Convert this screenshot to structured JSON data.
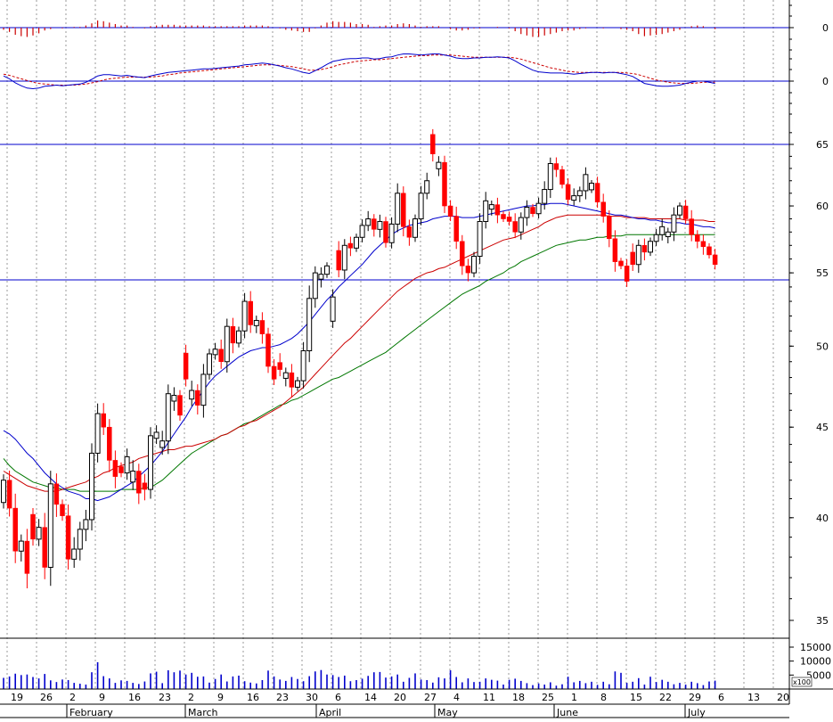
{
  "chart_data": {
    "type": "candlestick",
    "title": "",
    "price_axis": {
      "ticks": [
        "35",
        "40",
        "45",
        "50",
        "55",
        "60",
        "65"
      ],
      "ylim": [
        33.5,
        66.5
      ]
    },
    "macd_axis": {
      "ticks": [
        "0"
      ]
    },
    "histogram_axis": {
      "ticks": [
        "0"
      ]
    },
    "volume_axis": {
      "ticks": [
        "15000",
        "10000",
        "5000"
      ],
      "unit_label": "x100",
      "ylim": [
        0,
        16000
      ]
    },
    "date_axis": {
      "day_labels": [
        "19",
        "26",
        "2",
        "9",
        "16",
        "23",
        "2",
        "9",
        "16",
        "23",
        "30",
        "6",
        "14",
        "20",
        "27",
        "4",
        "11",
        "18",
        "25",
        "1",
        "8",
        "15",
        "22",
        "29",
        "6",
        "13",
        "20"
      ],
      "month_labels": [
        "February",
        "March",
        "April",
        "May",
        "June",
        "July"
      ]
    },
    "horizontal_lines": [
      65,
      54.5
    ],
    "colors": {
      "up": "#000000",
      "down": "#ff0000",
      "ma_fast": "#0000cc",
      "ma_mid": "#cc0000",
      "ma_slow": "#007700",
      "volume": "#0000cc",
      "histogram": "#cc0000"
    },
    "closes": [
      42.0,
      40.5,
      38.3,
      38.8,
      37.2,
      38.9,
      39.5,
      37.5,
      41.8,
      40.7,
      40.1,
      37.9,
      38.4,
      39.4,
      39.9,
      43.5,
      45.8,
      45.0,
      43.1,
      42.2,
      42.4,
      43.3,
      42.5,
      41.3,
      41.5,
      44.5,
      44.7,
      44.2,
      47.0,
      46.9,
      45.7,
      47.9,
      47.2,
      46.3,
      48.2,
      49.5,
      49.8,
      49.0,
      51.3,
      50.2,
      51.0,
      53.0,
      51.4,
      51.7,
      50.8,
      48.7,
      47.9,
      48.5,
      48.3,
      47.4,
      47.8,
      49.7,
      53.2,
      55.0,
      54.9,
      55.5,
      53.3,
      55.2,
      57.0,
      56.8,
      57.6,
      58.5,
      59.0,
      58.2,
      58.8,
      57.2,
      58.6,
      61.0,
      58.4,
      57.6,
      59.0,
      61.0,
      62.0,
      64.2,
      63.5,
      60.0,
      59.2,
      57.3,
      55.5,
      55.0,
      56.2,
      58.8,
      60.4,
      60.1,
      59.3,
      59.0,
      58.8,
      58.0,
      59.1,
      59.9,
      59.4,
      60.2,
      61.3,
      63.4,
      62.9,
      61.7,
      60.5,
      60.8,
      61.2,
      62.5,
      61.8,
      60.3,
      59.2,
      57.5,
      55.8,
      55.5,
      54.4,
      55.6,
      57.0,
      56.5,
      57.3,
      57.8,
      58.4,
      58.0,
      59.3,
      60.0,
      59.0,
      57.8,
      57.3,
      56.9,
      56.3,
      55.6
    ],
    "ma_fast": [
      44.8,
      44.6,
      44.3,
      43.9,
      43.5,
      43.2,
      42.8,
      42.4,
      42.1,
      41.8,
      41.6,
      41.4,
      41.3,
      41.2,
      41.0,
      41.0,
      40.9,
      41.0,
      41.1,
      41.3,
      41.5,
      41.7,
      41.9,
      42.2,
      42.5,
      42.8,
      43.2,
      43.6,
      44.1,
      44.6,
      45.1,
      45.6,
      46.2,
      46.7,
      47.2,
      47.7,
      48.1,
      48.4,
      48.7,
      49.0,
      49.3,
      49.5,
      49.7,
      49.8,
      49.9,
      49.9,
      50.0,
      50.1,
      50.3,
      50.5,
      50.8,
      51.2,
      51.6,
      52.1,
      52.6,
      53.1,
      53.5,
      54.0,
      54.4,
      54.8,
      55.2,
      55.6,
      56.1,
      56.6,
      57.0,
      57.4,
      57.8,
      58.1,
      58.3,
      58.5,
      58.6,
      58.7,
      58.8,
      59.0,
      59.1,
      59.2,
      59.2,
      59.2,
      59.1,
      59.1,
      59.1,
      59.2,
      59.3,
      59.4,
      59.5,
      59.6,
      59.7,
      59.8,
      59.9,
      60.0,
      60.0,
      60.1,
      60.1,
      60.2,
      60.2,
      60.2,
      60.1,
      60.0,
      59.9,
      59.8,
      59.7,
      59.6,
      59.5,
      59.4,
      59.3,
      59.3,
      59.2,
      59.1,
      59.0,
      59.0,
      58.9,
      58.9,
      58.8,
      58.7,
      58.7,
      58.7,
      58.6,
      58.6,
      58.5,
      58.4,
      58.4,
      58.3
    ],
    "ma_mid": [
      42.5,
      42.3,
      42.1,
      41.9,
      41.7,
      41.6,
      41.5,
      41.4,
      41.4,
      41.4,
      41.5,
      41.6,
      41.7,
      41.8,
      41.9,
      42.1,
      42.2,
      42.4,
      42.5,
      42.7,
      42.8,
      42.9,
      43.0,
      43.2,
      43.3,
      43.4,
      43.5,
      43.6,
      43.7,
      43.7,
      43.8,
      43.9,
      43.9,
      44.0,
      44.1,
      44.2,
      44.3,
      44.5,
      44.6,
      44.8,
      45.0,
      45.1,
      45.3,
      45.4,
      45.6,
      45.8,
      46.0,
      46.2,
      46.5,
      46.8,
      47.1,
      47.4,
      47.8,
      48.2,
      48.6,
      49.0,
      49.4,
      49.8,
      50.2,
      50.5,
      50.9,
      51.3,
      51.7,
      52.1,
      52.5,
      52.9,
      53.3,
      53.7,
      54.0,
      54.3,
      54.6,
      54.8,
      55.0,
      55.1,
      55.3,
      55.4,
      55.6,
      55.8,
      56.0,
      56.2,
      56.4,
      56.6,
      56.8,
      57.0,
      57.2,
      57.4,
      57.5,
      57.6,
      57.8,
      58.0,
      58.2,
      58.4,
      58.7,
      58.9,
      59.1,
      59.2,
      59.3,
      59.3,
      59.3,
      59.3,
      59.3,
      59.3,
      59.3,
      59.2,
      59.2,
      59.2,
      59.1,
      59.1,
      59.1,
      59.1,
      59.0,
      59.0,
      59.0,
      59.0,
      59.0,
      59.0,
      58.9,
      58.9,
      58.9,
      58.9,
      58.8,
      58.8
    ],
    "ma_slow": [
      43.2,
      42.8,
      42.5,
      42.3,
      42.1,
      41.9,
      41.8,
      41.7,
      41.6,
      41.6,
      41.5,
      41.5,
      41.5,
      41.4,
      41.4,
      41.4,
      41.4,
      41.4,
      41.4,
      41.4,
      41.5,
      41.5,
      41.5,
      41.5,
      41.6,
      41.6,
      41.8,
      42.0,
      42.3,
      42.6,
      42.9,
      43.2,
      43.5,
      43.7,
      43.9,
      44.1,
      44.3,
      44.5,
      44.6,
      44.8,
      45.0,
      45.2,
      45.3,
      45.5,
      45.7,
      45.9,
      46.1,
      46.3,
      46.4,
      46.6,
      46.7,
      46.9,
      47.1,
      47.3,
      47.5,
      47.7,
      47.9,
      48.0,
      48.2,
      48.4,
      48.6,
      48.8,
      49.0,
      49.2,
      49.4,
      49.6,
      49.9,
      50.2,
      50.5,
      50.8,
      51.1,
      51.4,
      51.7,
      52.0,
      52.3,
      52.6,
      52.9,
      53.2,
      53.5,
      53.7,
      53.9,
      54.1,
      54.4,
      54.6,
      54.8,
      55.0,
      55.3,
      55.5,
      55.8,
      56.0,
      56.2,
      56.4,
      56.6,
      56.8,
      57.0,
      57.1,
      57.2,
      57.3,
      57.4,
      57.4,
      57.5,
      57.6,
      57.6,
      57.7,
      57.7,
      57.7,
      57.8,
      57.8,
      57.8,
      57.8,
      57.8,
      57.8,
      57.8,
      57.8,
      57.8,
      57.8,
      57.8,
      57.8,
      57.8,
      57.8,
      57.8,
      57.8
    ],
    "volumes": [
      4000,
      4500,
      5500,
      5000,
      5200,
      4300,
      3800,
      5400,
      3100,
      2500,
      3400,
      3200,
      2200,
      1900,
      1600,
      6000,
      9600,
      4600,
      3800,
      2200,
      3100,
      2900,
      2200,
      1800,
      2700,
      5600,
      6200,
      2100,
      6700,
      6000,
      6600,
      5200,
      5800,
      4400,
      4500,
      2300,
      3600,
      5200,
      2700,
      4500,
      4800,
      2800,
      2300,
      2000,
      3200,
      6600,
      4500,
      3400,
      2900,
      4300,
      3600,
      2800,
      4600,
      6300,
      6800,
      5200,
      5000,
      4300,
      4800,
      2800,
      3200,
      3700,
      4700,
      6000,
      6100,
      4100,
      4500,
      5200,
      2600,
      4000,
      5600,
      3400,
      3200,
      2300,
      4200,
      3800,
      6700,
      4300,
      2400,
      3800,
      2500,
      2600,
      3800,
      3300,
      3000,
      1600,
      3300,
      3700,
      2900,
      2100,
      1400,
      2000,
      1600,
      2400,
      1200,
      1700,
      4400,
      2400,
      2900,
      2100,
      2600,
      1500,
      2600,
      1700,
      6300,
      5800,
      2200,
      2600,
      3900,
      1600,
      4400,
      2500,
      3300,
      2600,
      1700,
      2200,
      1600,
      2600,
      2100,
      1400,
      2700,
      3000
    ],
    "macd": [
      0.9,
      0.4,
      -0.3,
      -0.8,
      -1.2,
      -1.3,
      -1.2,
      -0.9,
      -0.8,
      -0.7,
      -0.8,
      -0.7,
      -0.6,
      -0.5,
      -0.2,
      0.3,
      0.9,
      1.1,
      1.1,
      1.0,
      0.9,
      1.0,
      0.8,
      0.7,
      0.6,
      0.9,
      1.1,
      1.3,
      1.5,
      1.6,
      1.7,
      1.8,
      1.9,
      2.0,
      2.1,
      2.1,
      2.2,
      2.3,
      2.4,
      2.5,
      2.6,
      2.8,
      2.9,
      3.0,
      3.1,
      3.0,
      2.8,
      2.6,
      2.3,
      2.1,
      1.8,
      1.5,
      1.3,
      1.8,
      2.3,
      2.9,
      3.4,
      3.6,
      3.8,
      3.9,
      3.9,
      4.0,
      4.0,
      3.8,
      3.9,
      4.1,
      4.2,
      4.5,
      4.7,
      4.7,
      4.6,
      4.5,
      4.6,
      4.7,
      4.7,
      4.5,
      4.3,
      4.0,
      3.9,
      3.9,
      4.0,
      4.0,
      4.1,
      4.1,
      4.2,
      4.1,
      4.0,
      3.5,
      2.9,
      2.4,
      1.9,
      1.6,
      1.5,
      1.4,
      1.4,
      1.4,
      1.3,
      1.2,
      1.3,
      1.4,
      1.5,
      1.5,
      1.4,
      1.5,
      1.5,
      1.3,
      1.1,
      0.8,
      0.2,
      -0.4,
      -0.6,
      -0.8,
      -0.9,
      -0.9,
      -0.8,
      -0.7,
      -0.4,
      -0.2,
      0.0,
      0.0,
      -0.2,
      -0.4
    ],
    "macd_signal": [
      1.2,
      1.0,
      0.7,
      0.4,
      0.1,
      -0.2,
      -0.4,
      -0.5,
      -0.6,
      -0.7,
      -0.7,
      -0.7,
      -0.7,
      -0.6,
      -0.5,
      -0.3,
      -0.1,
      0.2,
      0.4,
      0.5,
      0.6,
      0.7,
      0.7,
      0.7,
      0.7,
      0.7,
      0.8,
      0.9,
      1.1,
      1.2,
      1.4,
      1.5,
      1.6,
      1.7,
      1.8,
      1.9,
      2.0,
      2.1,
      2.2,
      2.3,
      2.4,
      2.5,
      2.6,
      2.7,
      2.8,
      2.8,
      2.8,
      2.7,
      2.6,
      2.5,
      2.3,
      2.1,
      1.9,
      1.9,
      2.0,
      2.2,
      2.5,
      2.8,
      3.0,
      3.2,
      3.4,
      3.5,
      3.6,
      3.7,
      3.7,
      3.8,
      3.9,
      4.0,
      4.1,
      4.2,
      4.3,
      4.4,
      4.4,
      4.5,
      4.5,
      4.5,
      4.5,
      4.4,
      4.3,
      4.2,
      4.1,
      4.1,
      4.1,
      4.1,
      4.1,
      4.1,
      4.1,
      4.0,
      3.8,
      3.5,
      3.2,
      2.9,
      2.6,
      2.3,
      2.1,
      1.9,
      1.7,
      1.6,
      1.5,
      1.5,
      1.5,
      1.5,
      1.5,
      1.5,
      1.5,
      1.5,
      1.4,
      1.3,
      1.1,
      0.8,
      0.5,
      0.2,
      0.0,
      -0.2,
      -0.3,
      -0.4,
      -0.4,
      -0.4,
      -0.3,
      -0.2,
      -0.2,
      -0.2
    ],
    "down_days": [
      1,
      2,
      4,
      5,
      7,
      9,
      10,
      11,
      17,
      18,
      19,
      20,
      23,
      24,
      30,
      31,
      33,
      37,
      39,
      42,
      44,
      45,
      46,
      47,
      49,
      57,
      59,
      63,
      65,
      68,
      69,
      73,
      75,
      76,
      77,
      78,
      79,
      84,
      85,
      86,
      87,
      90,
      94,
      95,
      96,
      101,
      102,
      103,
      104,
      105,
      106,
      107,
      109,
      116,
      117,
      118,
      119,
      120,
      121
    ]
  }
}
